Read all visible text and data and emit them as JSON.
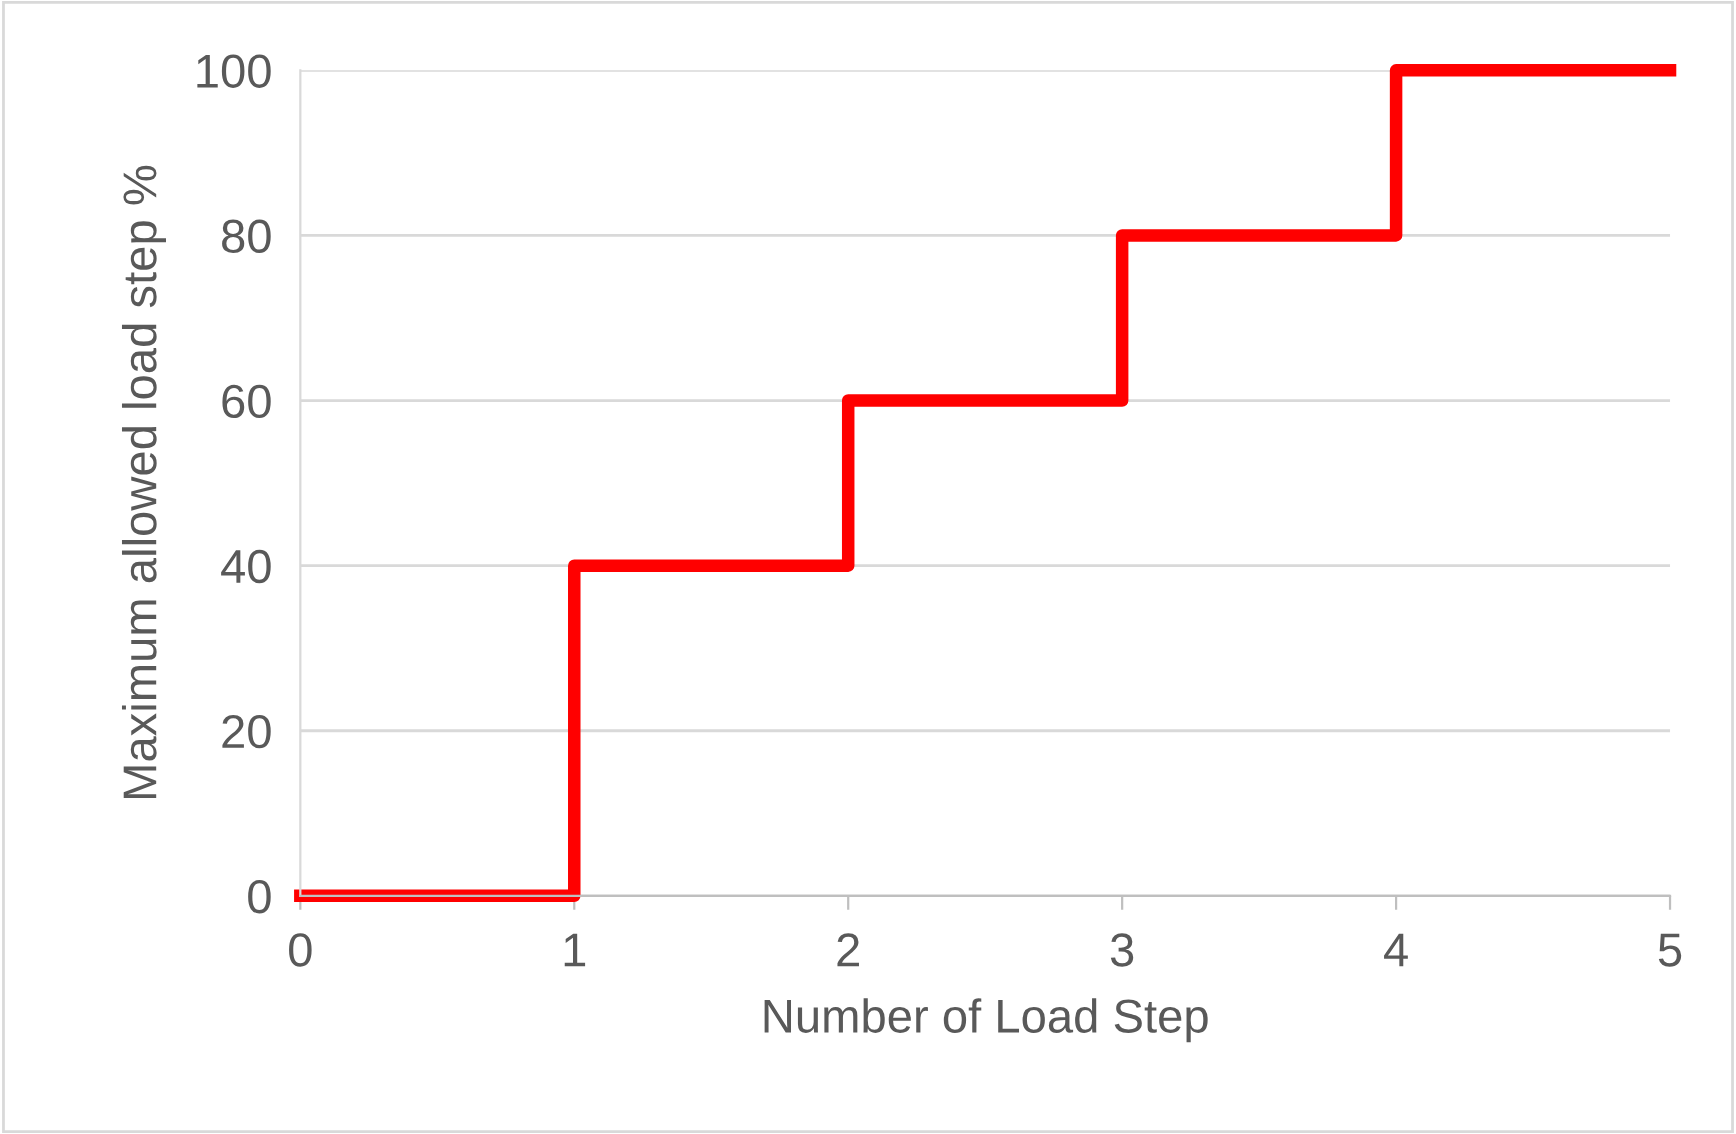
{
  "chart_data": {
    "type": "step",
    "xlabel": "Number of Load Step",
    "ylabel": "Maximum allowed load step %",
    "x": [
      0,
      1,
      2,
      3,
      4,
      5
    ],
    "series": [
      {
        "color": "#ff0000",
        "values": [
          0,
          40,
          60,
          80,
          100,
          100
        ]
      }
    ],
    "xlim": [
      0,
      5
    ],
    "xticks": [
      0,
      1,
      2,
      3,
      4,
      5
    ],
    "ylim": [
      0,
      100
    ],
    "yticks": [
      0,
      20,
      40,
      60,
      80,
      100
    ],
    "grid": "y",
    "legend": false,
    "line_style": "solid",
    "marker": "none"
  }
}
